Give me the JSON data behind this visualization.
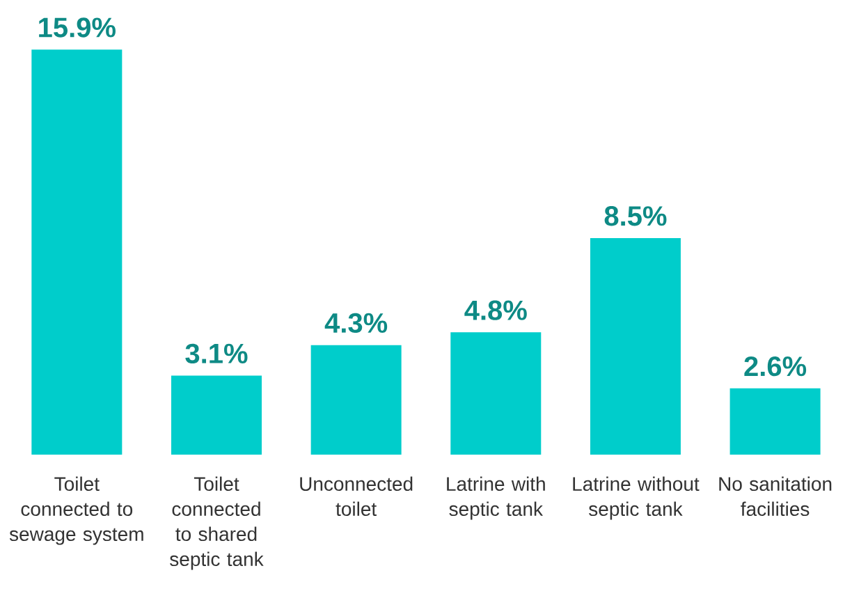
{
  "chart_data": {
    "type": "bar",
    "categories": [
      "Toilet connected to sewage system",
      "Toilet connected to shared septic tank",
      "Unconnected toilet",
      "Latrine with septic tank",
      "Latrine without septic tank",
      "No sanitation facilities"
    ],
    "values": [
      15.9,
      3.1,
      4.3,
      4.8,
      8.5,
      2.6
    ],
    "value_labels": [
      "15.9%",
      "3.1%",
      "4.3%",
      "4.8%",
      "8.5%",
      "2.6%"
    ],
    "color": "#00cdcb"
  }
}
